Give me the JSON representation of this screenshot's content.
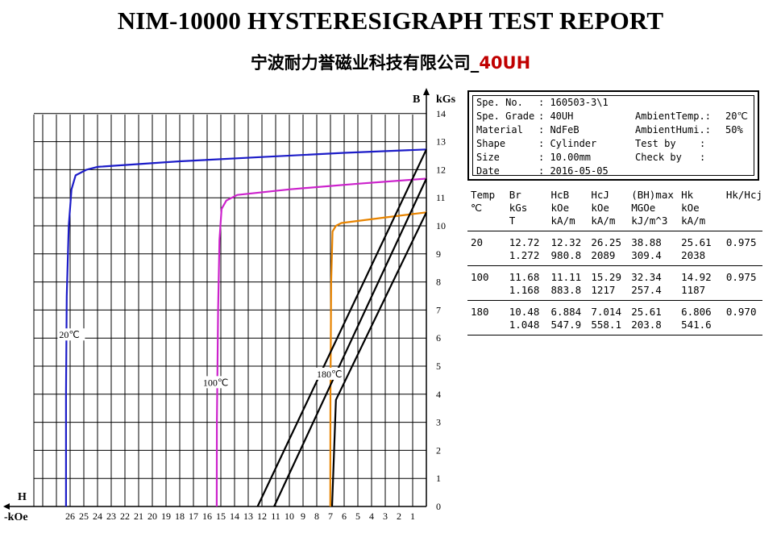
{
  "report": {
    "title": "NIM-10000 HYSTERESIGRAPH TEST REPORT",
    "subtitle_prefix": "宁波耐力誉磁业科技有限公司_",
    "subtitle_grade": "40UH"
  },
  "info": {
    "spe_no": {
      "label": "Spe. No.",
      "value": ": 160503-3\\1"
    },
    "spe_grade": {
      "label": "Spe. Grade",
      "value": ": 40UH"
    },
    "material": {
      "label": "Material",
      "value": ": NdFeB"
    },
    "shape": {
      "label": "Shape",
      "value": ": Cylinder"
    },
    "size": {
      "label": "Size",
      "value": ": 10.00mm"
    },
    "date": {
      "label": "Date",
      "value": ": 2016-05-05"
    },
    "ambient_temp": {
      "label": "AmbientTemp.:",
      "value": "20℃"
    },
    "ambient_humi": {
      "label": "AmbientHumi.:",
      "value": "50%"
    },
    "test_by": {
      "label": "Test by",
      "value": ":"
    },
    "check_by": {
      "label": "Check by",
      "value": ":"
    }
  },
  "results": {
    "headers": [
      [
        "Temp",
        "℃",
        ""
      ],
      [
        "Br",
        "kGs",
        "T"
      ],
      [
        "HcB",
        "kOe",
        "kA/m"
      ],
      [
        "HcJ",
        "kOe",
        "kA/m"
      ],
      [
        "(BH)max",
        "MGOe",
        "kJ/m^3"
      ],
      [
        "Hk",
        "kOe",
        "kA/m"
      ],
      [
        "Hk/Hcj",
        "",
        ""
      ]
    ],
    "rows": [
      {
        "temp": "20",
        "br": [
          "12.72",
          "1.272"
        ],
        "hcb": [
          "12.32",
          "980.8"
        ],
        "hcj": [
          "26.25",
          "2089"
        ],
        "bhmax": [
          "38.88",
          "309.4"
        ],
        "hk": [
          "25.61",
          "2038"
        ],
        "ratio": "0.975"
      },
      {
        "temp": "100",
        "br": [
          "11.68",
          "1.168"
        ],
        "hcb": [
          "11.11",
          "883.8"
        ],
        "hcj": [
          "15.29",
          "1217"
        ],
        "bhmax": [
          "32.34",
          "257.4"
        ],
        "hk": [
          "14.92",
          "1187"
        ],
        "ratio": "0.975"
      },
      {
        "temp": "180",
        "br": [
          "10.48",
          "1.048"
        ],
        "hcb": [
          "6.884",
          "547.9"
        ],
        "hcj": [
          "7.014",
          "558.1"
        ],
        "bhmax": [
          "25.61",
          "203.8"
        ],
        "hk": [
          "6.806",
          "541.6"
        ],
        "ratio": "0.970"
      }
    ]
  },
  "chart_data": {
    "type": "line",
    "xlabel": "H",
    "xunit": "-kOe",
    "ylabel": "B",
    "yunit": "kGs",
    "xlim": [
      0,
      30
    ],
    "ylim": [
      0,
      14.5
    ],
    "x_ticks": [
      1,
      2,
      3,
      4,
      5,
      6,
      7,
      8,
      9,
      10,
      11,
      12,
      13,
      14,
      15,
      16,
      17,
      18,
      19,
      20,
      21,
      22,
      23,
      24,
      25,
      26
    ],
    "y_ticks": [
      0,
      1,
      2,
      3,
      4,
      5,
      6,
      7,
      8,
      9,
      10,
      11,
      12,
      13,
      14
    ],
    "grid": true,
    "series": [
      {
        "name": "20℃",
        "type": "J-H",
        "color": "#1c1cc8",
        "points": [
          [
            0,
            12.72
          ],
          [
            6,
            12.6
          ],
          [
            12,
            12.45
          ],
          [
            18,
            12.3
          ],
          [
            24,
            12.1
          ],
          [
            24.8,
            12.0
          ],
          [
            25.6,
            11.8
          ],
          [
            25.9,
            11.3
          ],
          [
            26.1,
            10.0
          ],
          [
            26.25,
            7.5
          ],
          [
            26.3,
            4.0
          ],
          [
            26.3,
            0
          ]
        ]
      },
      {
        "name": "100℃",
        "type": "J-H",
        "color": "#cc22cc",
        "points": [
          [
            0,
            11.68
          ],
          [
            5,
            11.5
          ],
          [
            10,
            11.3
          ],
          [
            13.8,
            11.1
          ],
          [
            14.6,
            10.9
          ],
          [
            14.95,
            10.6
          ],
          [
            15.1,
            9.5
          ],
          [
            15.2,
            7.0
          ],
          [
            15.29,
            3.0
          ],
          [
            15.3,
            0
          ]
        ]
      },
      {
        "name": "180℃",
        "type": "J-H",
        "color": "#e88400",
        "points": [
          [
            0,
            10.48
          ],
          [
            3,
            10.3
          ],
          [
            6.2,
            10.1
          ],
          [
            6.6,
            10.0
          ],
          [
            6.85,
            9.8
          ],
          [
            6.95,
            8.0
          ],
          [
            7.0,
            4.0
          ],
          [
            7.01,
            0
          ]
        ]
      },
      {
        "name": "",
        "type": "B-H",
        "color": "#000000",
        "points": [
          [
            0,
            12.72
          ],
          [
            12.32,
            0
          ]
        ]
      },
      {
        "name": "",
        "type": "B-H",
        "color": "#000000",
        "points": [
          [
            0,
            11.68
          ],
          [
            11.11,
            0
          ]
        ]
      },
      {
        "name": "",
        "type": "B-H",
        "color": "#000000",
        "points": [
          [
            0,
            10.48
          ],
          [
            6.6,
            3.8
          ],
          [
            6.884,
            0
          ]
        ]
      }
    ],
    "annotations": [
      {
        "text": "20℃",
        "x": 26.8,
        "y": 6.0,
        "color": "#000000"
      },
      {
        "text": "100℃",
        "x": 16.3,
        "y": 4.3,
        "color": "#000000"
      },
      {
        "text": "180℃",
        "x": 8.0,
        "y": 4.6,
        "color": "#000000"
      }
    ]
  }
}
